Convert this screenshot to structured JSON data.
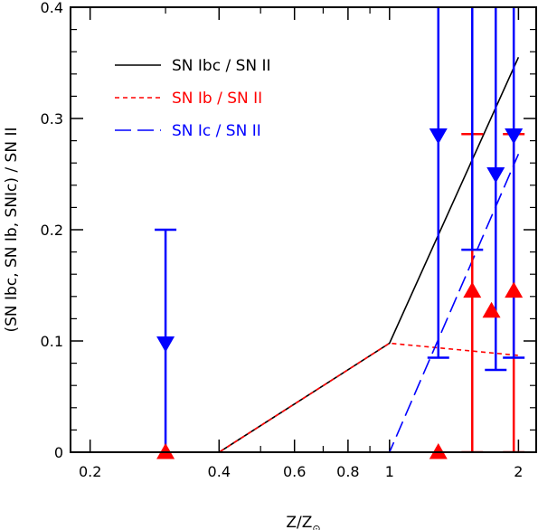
{
  "chart_data": {
    "type": "line",
    "title": "",
    "xlabel": "Z/Z",
    "xlabel_symbol": "⊙",
    "ylabel": "(SN Ibc, SN Ib, SNIc) / SN II",
    "x_scale": "log",
    "xlim": [
      0.18,
      2.2
    ],
    "ylim": [
      0,
      0.4
    ],
    "x_ticks": [
      0.2,
      0.4,
      0.6,
      0.8,
      1,
      2
    ],
    "x_tick_labels": [
      "0.2",
      "0.4",
      "0.6",
      "0.8",
      "1",
      "2"
    ],
    "y_ticks": [
      0,
      0.1,
      0.2,
      0.3,
      0.4
    ],
    "y_tick_labels": [
      "0",
      "0.1",
      "0.2",
      "0.3",
      "0.4"
    ],
    "legend_position": "top-left",
    "series": [
      {
        "name": "SN Ibc / SN II",
        "color": "#000000",
        "style": "solid",
        "x": [
          0.2,
          0.4,
          1.0,
          2.0
        ],
        "y": [
          0.0,
          0.0,
          0.098,
          0.355
        ]
      },
      {
        "name": "SN Ib / SN II",
        "color": "#ff0000",
        "style": "short-dash",
        "x": [
          0.2,
          0.4,
          1.0,
          2.0
        ],
        "y": [
          0.0,
          0.0,
          0.098,
          0.087
        ]
      },
      {
        "name": "SN Ic / SN II",
        "color": "#0000ff",
        "style": "long-dash",
        "x": [
          0.2,
          0.4,
          1.0,
          2.0
        ],
        "y": [
          0.0,
          0.0,
          0.0,
          0.268
        ]
      }
    ],
    "upper_limits": [
      {
        "x": 0.3,
        "y": 0.098,
        "y_high": 0.2,
        "y_low": 0.0,
        "color": "#0000ff",
        "cap_top": true,
        "cap_bottom": false
      },
      {
        "x": 1.3,
        "y": 0.285,
        "y_high": 0.4,
        "y_low": 0.085,
        "color": "#0000ff",
        "cap_top": false,
        "cap_bottom": true
      },
      {
        "x": 1.77,
        "y": 0.25,
        "y_high": 0.4,
        "y_low": 0.074,
        "color": "#0000ff",
        "cap_top": false,
        "cap_bottom": true
      },
      {
        "x": 1.95,
        "y": 0.285,
        "y_high": 0.4,
        "y_low": 0.085,
        "color": "#0000ff",
        "cap_top": false,
        "cap_bottom": true
      },
      {
        "x": 1.56,
        "y": 0.0,
        "y_high": 0.4,
        "y_low": 0.182,
        "color": "#0000ff",
        "cap_top": false,
        "cap_bottom": true,
        "no_marker": true
      }
    ],
    "points": [
      {
        "x": 0.3,
        "y": 0.0,
        "y_low": 0.0,
        "y_high": 0.0,
        "color": "#ff0000"
      },
      {
        "x": 1.3,
        "y": 0.0,
        "y_low": 0.0,
        "y_high": 0.0,
        "color": "#ff0000"
      },
      {
        "x": 1.56,
        "y": 0.145,
        "y_low": 0.0,
        "y_high": 0.286,
        "color": "#ff0000"
      },
      {
        "x": 1.73,
        "y": 0.127,
        "y_low": 0.0,
        "y_high": 0.0,
        "color": "#ff0000"
      },
      {
        "x": 1.95,
        "y": 0.145,
        "y_low": 0.0,
        "y_high": 0.286,
        "color": "#ff0000"
      }
    ]
  }
}
